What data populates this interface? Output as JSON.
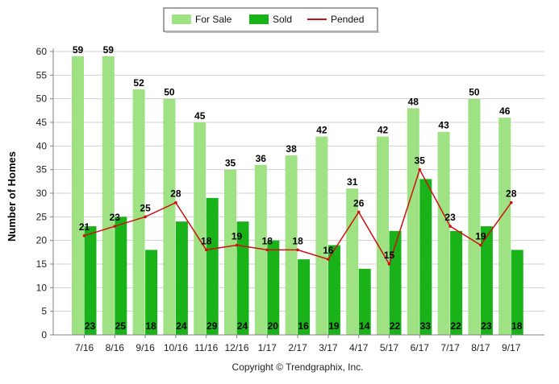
{
  "colors": {
    "for_sale": "#9ee283",
    "sold": "#19b219",
    "pended": "#cc1111",
    "grid": "#d0d0d0",
    "axis": "#808080"
  },
  "legend": {
    "for_sale_label": "For Sale",
    "sold_label": "Sold",
    "pended_label": "Pended",
    "placement": "top-center"
  },
  "copyright": "Copyright © Trendgraphix, Inc.",
  "chart_data": {
    "type": "bar",
    "ylabel": "Number of Homes",
    "xlabel": "",
    "ylim": [
      0,
      60
    ],
    "yticks": [
      0,
      5,
      10,
      15,
      20,
      25,
      30,
      35,
      40,
      45,
      50,
      55,
      60
    ],
    "grid": true,
    "categories": [
      "7/16",
      "8/16",
      "9/16",
      "10/16",
      "11/16",
      "12/16",
      "1/17",
      "2/17",
      "3/17",
      "4/17",
      "5/17",
      "6/17",
      "7/17",
      "8/17",
      "9/17"
    ],
    "series": [
      {
        "name": "For Sale",
        "type": "bar",
        "values": [
          59,
          59,
          52,
          50,
          45,
          35,
          36,
          38,
          42,
          31,
          42,
          48,
          43,
          50,
          46
        ]
      },
      {
        "name": "Sold",
        "type": "bar",
        "values": [
          23,
          25,
          18,
          24,
          29,
          24,
          20,
          16,
          19,
          14,
          22,
          33,
          22,
          23,
          18
        ]
      },
      {
        "name": "Pended",
        "type": "line",
        "values": [
          21,
          23,
          25,
          28,
          18,
          19,
          18,
          18,
          16,
          26,
          15,
          35,
          23,
          19,
          28
        ]
      }
    ]
  }
}
